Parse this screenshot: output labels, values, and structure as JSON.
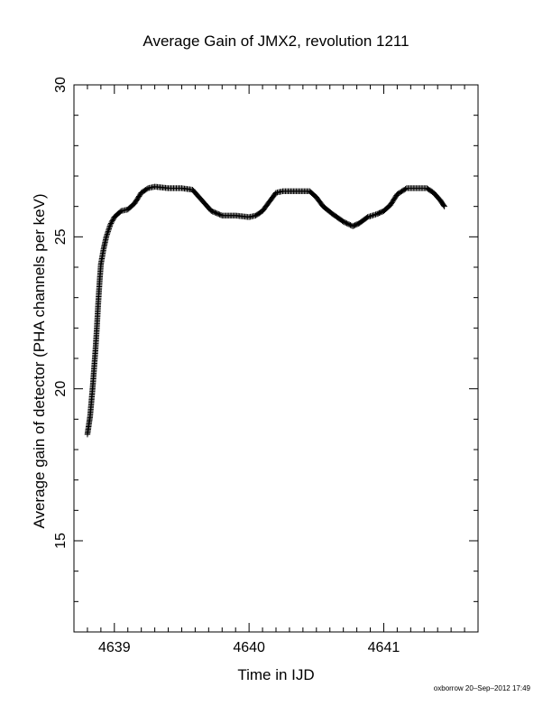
{
  "chart_data": {
    "type": "scatter",
    "title": "Average Gain of JMX2, revolution 1211",
    "xlabel": "Time in IJD",
    "ylabel": "Average gain of detector (PHA channels per keV)",
    "xlim": [
      4638.7,
      4641.7
    ],
    "ylim": [
      12,
      30
    ],
    "xticks": [
      4639,
      4640,
      4641
    ],
    "xticklabels": [
      "4639",
      "4640",
      "4641"
    ],
    "yticks": [
      15,
      20,
      25,
      30
    ],
    "yticklabels": [
      "15",
      "20",
      "25",
      "30"
    ],
    "grid": false,
    "marker": "plus",
    "series": [
      {
        "values": [
          [
            4638.8,
            18.5
          ],
          [
            4638.81,
            18.8
          ],
          [
            4638.82,
            19.1
          ],
          [
            4638.83,
            19.6
          ],
          [
            4638.84,
            20.1
          ],
          [
            4638.85,
            20.7
          ],
          [
            4638.86,
            21.3
          ],
          [
            4638.87,
            22.0
          ],
          [
            4638.88,
            22.8
          ],
          [
            4638.89,
            23.5
          ],
          [
            4638.9,
            24.1
          ],
          [
            4638.92,
            24.6
          ],
          [
            4638.94,
            25.0
          ],
          [
            4638.97,
            25.4
          ],
          [
            4639.0,
            25.65
          ],
          [
            4639.05,
            25.85
          ],
          [
            4639.1,
            25.9
          ],
          [
            4639.15,
            26.1
          ],
          [
            4639.2,
            26.45
          ],
          [
            4639.25,
            26.6
          ],
          [
            4639.3,
            26.65
          ],
          [
            4639.4,
            26.6
          ],
          [
            4639.5,
            26.6
          ],
          [
            4639.58,
            26.55
          ],
          [
            4639.65,
            26.2
          ],
          [
            4639.72,
            25.85
          ],
          [
            4639.8,
            25.7
          ],
          [
            4639.9,
            25.7
          ],
          [
            4640.0,
            25.65
          ],
          [
            4640.05,
            25.7
          ],
          [
            4640.1,
            25.85
          ],
          [
            4640.15,
            26.15
          ],
          [
            4640.2,
            26.45
          ],
          [
            4640.25,
            26.5
          ],
          [
            4640.35,
            26.5
          ],
          [
            4640.45,
            26.5
          ],
          [
            4640.5,
            26.3
          ],
          [
            4640.55,
            26.0
          ],
          [
            4640.62,
            25.75
          ],
          [
            4640.7,
            25.5
          ],
          [
            4640.77,
            25.35
          ],
          [
            4640.82,
            25.45
          ],
          [
            4640.88,
            25.65
          ],
          [
            4640.95,
            25.75
          ],
          [
            4641.0,
            25.85
          ],
          [
            4641.05,
            26.05
          ],
          [
            4641.1,
            26.4
          ],
          [
            4641.17,
            26.6
          ],
          [
            4641.25,
            26.6
          ],
          [
            4641.32,
            26.6
          ],
          [
            4641.37,
            26.45
          ],
          [
            4641.42,
            26.2
          ],
          [
            4641.45,
            26.0
          ]
        ]
      }
    ]
  },
  "footer": {
    "credit": "oxborrow 20–Sep–2012 17:49"
  }
}
